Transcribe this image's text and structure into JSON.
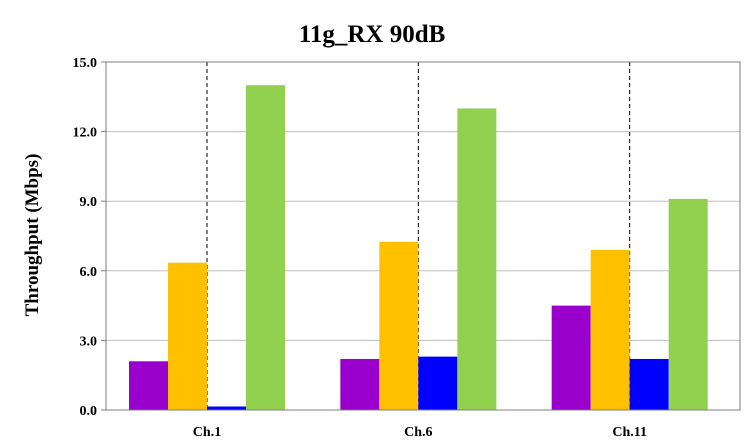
{
  "chart_data": {
    "type": "bar",
    "title": "11g_RX 90dB",
    "xlabel": "",
    "ylabel": "Throughput (Mbps)",
    "ylim": [
      0,
      15
    ],
    "yticks": [
      "0.0",
      "3.0",
      "6.0",
      "9.0",
      "12.0",
      "15.0"
    ],
    "categories": [
      "Ch.1",
      "Ch.6",
      "Ch.11"
    ],
    "grid": "horizontal",
    "legend": "none",
    "series": [
      {
        "color": "#9900cc",
        "values": [
          2.1,
          2.2,
          4.5
        ]
      },
      {
        "color": "#ffc000",
        "values": [
          6.35,
          7.25,
          6.9
        ]
      },
      {
        "color": "#0000ff",
        "values": [
          0.15,
          2.3,
          2.2
        ]
      },
      {
        "color": "#92d050",
        "values": [
          14.0,
          13.0,
          9.1
        ]
      }
    ]
  }
}
